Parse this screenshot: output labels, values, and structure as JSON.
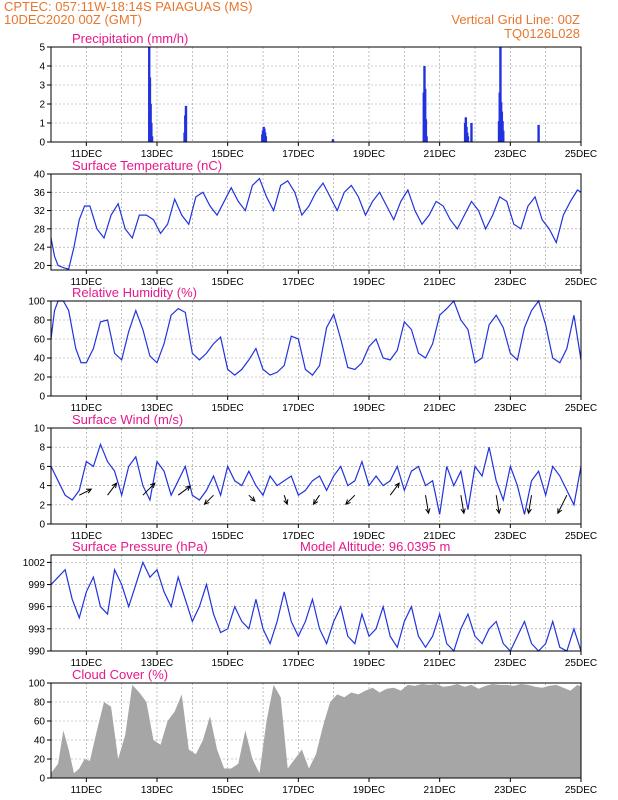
{
  "header": {
    "line1_left": "CPTEC:   057:11W-18:14S   PAIAGUAS (MS)",
    "line2_left": "10DEC2020 00Z (GMT)",
    "line1_right": "Vertical Grid Line: 00Z",
    "line2_right": "TQ0126L028"
  },
  "colors": {
    "header": "#e8762d",
    "title": "#e8188c",
    "series": "#2233dd",
    "cloud": "#a6a6a6",
    "arrow": "#000000"
  },
  "x_axis": {
    "tick_labels": [
      "11DEC",
      "13DEC",
      "15DEC",
      "17DEC",
      "19DEC",
      "21DEC",
      "23DEC",
      "25DEC"
    ],
    "tick_days": [
      1,
      3,
      5,
      7,
      9,
      11,
      13,
      15
    ],
    "range_days": [
      0,
      15
    ],
    "vertical_grid_days": [
      1,
      2,
      3,
      4,
      5,
      6,
      7,
      8,
      9,
      10,
      11,
      12,
      13,
      14,
      15
    ]
  },
  "chart_data": [
    {
      "id": "precip",
      "type": "bar",
      "title": "Precipitation (mm/h)",
      "ylim": [
        0,
        5
      ],
      "yticks": [
        0,
        1,
        2,
        3,
        4,
        5
      ],
      "x_days": [
        2.78,
        2.8,
        2.82,
        2.84,
        2.86,
        3.78,
        3.8,
        3.82,
        5.98,
        6.0,
        6.02,
        6.04,
        6.06,
        6.08,
        7.98,
        10.55,
        10.57,
        10.59,
        10.61,
        10.63,
        11.72,
        11.74,
        11.76,
        11.78,
        11.8,
        11.9,
        12.68,
        12.7,
        12.72,
        12.74,
        12.76,
        12.78,
        12.8,
        13.8
      ],
      "values": [
        5.0,
        3.4,
        2.0,
        1.0,
        0.3,
        0.5,
        1.4,
        1.9,
        0.4,
        0.6,
        0.8,
        0.7,
        0.5,
        0.3,
        0.15,
        2.6,
        4.0,
        2.8,
        1.2,
        0.3,
        1.0,
        1.3,
        0.8,
        0.5,
        0.3,
        1.0,
        1.1,
        2.6,
        5.0,
        2.1,
        1.6,
        1.1,
        0.6,
        0.9
      ]
    },
    {
      "id": "temp",
      "type": "line",
      "title": "Surface Temperature (nC)",
      "ylim": [
        19,
        40
      ],
      "yticks": [
        20,
        24,
        28,
        32,
        36,
        40
      ],
      "x_days": [
        0,
        0.1,
        0.2,
        0.35,
        0.5,
        0.65,
        0.8,
        0.95,
        1.1,
        1.3,
        1.5,
        1.7,
        1.9,
        2.1,
        2.3,
        2.5,
        2.7,
        2.9,
        3.1,
        3.3,
        3.5,
        3.7,
        3.9,
        4.1,
        4.3,
        4.5,
        4.7,
        4.9,
        5.1,
        5.3,
        5.5,
        5.7,
        5.9,
        6.1,
        6.3,
        6.5,
        6.7,
        6.9,
        7.1,
        7.3,
        7.5,
        7.7,
        7.9,
        8.1,
        8.3,
        8.5,
        8.7,
        8.9,
        9.1,
        9.3,
        9.5,
        9.7,
        9.9,
        10.1,
        10.3,
        10.5,
        10.7,
        10.9,
        11.1,
        11.3,
        11.5,
        11.7,
        11.9,
        12.1,
        12.3,
        12.5,
        12.7,
        12.9,
        13.1,
        13.3,
        13.5,
        13.7,
        13.9,
        14.1,
        14.3,
        14.5,
        14.7,
        14.9,
        15.0
      ],
      "values": [
        26,
        22,
        20,
        19.5,
        19.2,
        24,
        30,
        33,
        33,
        28,
        26,
        31,
        33.5,
        28,
        26,
        31,
        31,
        30,
        27,
        29,
        34.5,
        31,
        29,
        35,
        36,
        33,
        31,
        34,
        37,
        34,
        32,
        37.5,
        39,
        35,
        32,
        37.5,
        38.5,
        36,
        31,
        33,
        36,
        38,
        35,
        32,
        36,
        37.5,
        35,
        31,
        34,
        36,
        33,
        30,
        34,
        36.5,
        32,
        29,
        31,
        34,
        33,
        30,
        28,
        31,
        34,
        32,
        28,
        31,
        35,
        34,
        29,
        28,
        33,
        35,
        30,
        28,
        25,
        31,
        34,
        36.5,
        36
      ]
    },
    {
      "id": "rh",
      "type": "line",
      "title": "Relative Humidity (%)",
      "ylim": [
        0,
        100
      ],
      "yticks": [
        0,
        20,
        40,
        60,
        80,
        100
      ],
      "x_days": [
        0,
        0.1,
        0.2,
        0.35,
        0.5,
        0.7,
        0.85,
        1.0,
        1.2,
        1.4,
        1.6,
        1.8,
        2.0,
        2.2,
        2.4,
        2.6,
        2.8,
        3.0,
        3.2,
        3.4,
        3.6,
        3.8,
        4.0,
        4.2,
        4.4,
        4.6,
        4.8,
        5.0,
        5.2,
        5.4,
        5.6,
        5.8,
        6.0,
        6.2,
        6.4,
        6.6,
        6.8,
        7.0,
        7.2,
        7.4,
        7.6,
        7.8,
        8.0,
        8.2,
        8.4,
        8.6,
        8.8,
        9.0,
        9.2,
        9.4,
        9.6,
        9.8,
        10.0,
        10.2,
        10.4,
        10.6,
        10.8,
        11.0,
        11.2,
        11.4,
        11.6,
        11.8,
        12.0,
        12.2,
        12.4,
        12.6,
        12.8,
        13.0,
        13.2,
        13.4,
        13.6,
        13.8,
        14.0,
        14.2,
        14.4,
        14.6,
        14.8,
        15.0
      ],
      "values": [
        60,
        90,
        100,
        100,
        90,
        50,
        35,
        35,
        50,
        78,
        80,
        45,
        38,
        68,
        90,
        70,
        42,
        35,
        55,
        85,
        92,
        88,
        45,
        38,
        45,
        55,
        62,
        28,
        22,
        28,
        38,
        50,
        28,
        22,
        25,
        32,
        63,
        60,
        28,
        22,
        32,
        72,
        86,
        60,
        30,
        28,
        35,
        52,
        60,
        40,
        38,
        48,
        78,
        70,
        45,
        40,
        55,
        85,
        92,
        100,
        80,
        70,
        35,
        40,
        75,
        85,
        72,
        45,
        38,
        72,
        90,
        100,
        75,
        40,
        35,
        50,
        85,
        38
      ]
    },
    {
      "id": "wind",
      "type": "line",
      "title": "Surface Wind (m/s)",
      "ylim": [
        0,
        10
      ],
      "yticks": [
        0,
        2,
        4,
        6,
        8,
        10
      ],
      "x_days": [
        0,
        0.2,
        0.4,
        0.6,
        0.8,
        1.0,
        1.2,
        1.4,
        1.6,
        1.8,
        2.0,
        2.2,
        2.4,
        2.6,
        2.8,
        3.0,
        3.2,
        3.4,
        3.6,
        3.8,
        4.0,
        4.2,
        4.4,
        4.6,
        4.8,
        5.0,
        5.2,
        5.4,
        5.6,
        5.8,
        6.0,
        6.2,
        6.4,
        6.6,
        6.8,
        7.0,
        7.2,
        7.4,
        7.6,
        7.8,
        8.0,
        8.2,
        8.4,
        8.6,
        8.8,
        9.0,
        9.2,
        9.4,
        9.6,
        9.8,
        10.0,
        10.2,
        10.4,
        10.6,
        10.8,
        11.0,
        11.2,
        11.4,
        11.6,
        11.8,
        12.0,
        12.2,
        12.4,
        12.6,
        12.8,
        13.0,
        13.2,
        13.4,
        13.6,
        13.8,
        14.0,
        14.2,
        14.4,
        14.6,
        14.8,
        15.0
      ],
      "values": [
        6.0,
        4.5,
        3.0,
        2.5,
        3.5,
        6.5,
        6.0,
        8.3,
        6.5,
        5.5,
        3.0,
        6.0,
        7.0,
        4.0,
        2.5,
        6.5,
        5.5,
        3.0,
        4.5,
        6.0,
        3.0,
        2.5,
        3.5,
        5.0,
        3.0,
        6.0,
        4.5,
        4.0,
        5.5,
        4.0,
        3.0,
        5.0,
        4.0,
        4.5,
        5.0,
        3.0,
        3.5,
        4.5,
        5.0,
        3.5,
        5.0,
        6.0,
        4.0,
        4.5,
        6.5,
        4.0,
        5.0,
        4.0,
        4.5,
        6.0,
        3.5,
        5.5,
        6.0,
        4.0,
        4.5,
        1.0,
        6.0,
        4.0,
        5.5,
        1.5,
        6.0,
        5.0,
        8.0,
        4.5,
        2.5,
        6.0,
        4.0,
        1.0,
        4.5,
        5.5,
        3.0,
        6.0,
        5.0,
        3.5,
        2.0,
        6.0
      ],
      "arrow_days": [
        0.8,
        1.6,
        2.6,
        3.6,
        4.6,
        5.6,
        6.6,
        7.6,
        8.6,
        9.6,
        10.6,
        11.6,
        12.6,
        13.6,
        14.6
      ],
      "arrow_u": [
        2.0,
        1.5,
        2.0,
        2.0,
        -1.5,
        1.0,
        0.5,
        -1.0,
        -1.5,
        1.5,
        0.5,
        0.5,
        0.5,
        -0.5,
        -1.5
      ],
      "arrow_v": [
        1.0,
        2.0,
        2.0,
        1.5,
        -1.5,
        -1.0,
        -1.5,
        -1.5,
        -1.5,
        2.0,
        -3.0,
        -3.0,
        -3.0,
        -3.0,
        -3.0
      ]
    },
    {
      "id": "press",
      "type": "line",
      "title": "Surface Pressure (hPa)",
      "annotation": "Model Altitude: 96.0395 m",
      "ylim": [
        990,
        1003
      ],
      "yticks": [
        990,
        993,
        996,
        999,
        1002
      ],
      "x_days": [
        0,
        0.2,
        0.4,
        0.6,
        0.8,
        1.0,
        1.2,
        1.4,
        1.6,
        1.8,
        2.0,
        2.2,
        2.4,
        2.6,
        2.8,
        3.0,
        3.2,
        3.4,
        3.6,
        3.8,
        4.0,
        4.2,
        4.4,
        4.6,
        4.8,
        5.0,
        5.2,
        5.4,
        5.6,
        5.8,
        6.0,
        6.2,
        6.4,
        6.6,
        6.8,
        7.0,
        7.2,
        7.4,
        7.6,
        7.8,
        8.0,
        8.2,
        8.4,
        8.6,
        8.8,
        9.0,
        9.2,
        9.4,
        9.6,
        9.8,
        10.0,
        10.2,
        10.4,
        10.6,
        10.8,
        11.0,
        11.2,
        11.4,
        11.6,
        11.8,
        12.0,
        12.2,
        12.4,
        12.6,
        12.8,
        13.0,
        13.2,
        13.4,
        13.6,
        13.8,
        14.0,
        14.2,
        14.4,
        14.6,
        14.8,
        15.0
      ],
      "values": [
        999,
        1000,
        1001,
        997,
        994.5,
        998,
        1000,
        996,
        995,
        1001,
        999,
        996,
        999,
        1002,
        1000,
        1001,
        998,
        996,
        1000,
        997,
        994,
        996,
        999,
        995,
        992.5,
        993,
        996,
        994,
        993,
        997,
        993,
        991,
        994,
        998,
        994,
        992,
        994,
        997,
        993,
        991,
        994,
        996,
        992,
        991,
        995,
        992,
        993,
        996,
        992,
        990.5,
        994,
        996,
        992,
        990.5,
        992,
        995,
        991,
        990,
        993,
        995,
        992,
        991,
        993,
        994,
        991,
        990,
        992,
        994,
        991,
        990,
        991,
        994,
        990.5,
        990,
        993,
        990
      ]
    },
    {
      "id": "cloud",
      "type": "area",
      "title": "Cloud Cover (%)",
      "ylim": [
        0,
        100
      ],
      "yticks": [
        0,
        20,
        40,
        60,
        80,
        100
      ],
      "x_days": [
        0,
        0.2,
        0.35,
        0.5,
        0.65,
        0.8,
        0.95,
        1.1,
        1.3,
        1.5,
        1.7,
        1.9,
        2.1,
        2.3,
        2.5,
        2.7,
        2.9,
        3.1,
        3.3,
        3.5,
        3.7,
        3.9,
        4.1,
        4.3,
        4.5,
        4.7,
        4.9,
        5.1,
        5.3,
        5.5,
        5.7,
        5.9,
        6.1,
        6.3,
        6.5,
        6.7,
        6.9,
        7.1,
        7.3,
        7.5,
        7.7,
        7.9,
        8.1,
        8.3,
        8.5,
        8.7,
        8.9,
        9.1,
        9.3,
        9.5,
        9.7,
        9.9,
        10.1,
        10.3,
        10.5,
        10.7,
        10.9,
        11.1,
        11.3,
        11.5,
        11.7,
        11.9,
        12.1,
        12.3,
        12.5,
        12.7,
        12.9,
        13.1,
        13.3,
        13.5,
        13.7,
        13.9,
        14.1,
        14.3,
        14.5,
        14.7,
        14.9,
        15.0
      ],
      "values": [
        5,
        15,
        50,
        30,
        5,
        10,
        20,
        18,
        50,
        80,
        75,
        20,
        45,
        98,
        90,
        80,
        40,
        35,
        60,
        70,
        88,
        30,
        25,
        40,
        65,
        30,
        10,
        10,
        15,
        50,
        20,
        5,
        60,
        98,
        85,
        10,
        20,
        30,
        10,
        25,
        55,
        80,
        88,
        85,
        90,
        88,
        92,
        95,
        90,
        94,
        95,
        92,
        98,
        97,
        99,
        98,
        99,
        96,
        97,
        99,
        96,
        98,
        94,
        97,
        99,
        98,
        98,
        97,
        99,
        98,
        96,
        95,
        97,
        98,
        95,
        92,
        98,
        96
      ]
    }
  ]
}
